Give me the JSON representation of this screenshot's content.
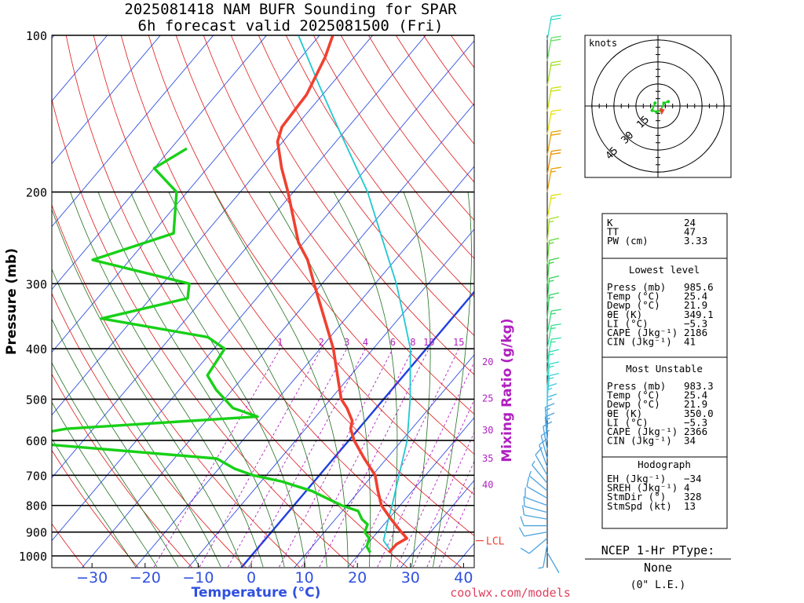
{
  "header": {
    "title_line1": "2025081418 NAM BUFR Sounding for SPAR",
    "title_line2": "6h forecast valid 2025081500 (Fri)"
  },
  "footer": {
    "site": "coolwx.com/models"
  },
  "chart_data": {
    "type": "skew-t",
    "xlabel": "Temperature (°C)",
    "ylabel": "Pressure (mb)",
    "mixing_ratio_label": "Mixing Ratio (g/kg)",
    "x_ticks": [
      "−30",
      "−20",
      "−10",
      "0",
      "10",
      "20",
      "30",
      "40"
    ],
    "x_tick_values": [
      -30,
      -20,
      -10,
      0,
      10,
      20,
      30,
      40
    ],
    "y_ticks": [
      "100",
      "200",
      "300",
      "400",
      "500",
      "600",
      "700",
      "800",
      "900",
      "1000"
    ],
    "y_tick_values": [
      100,
      200,
      300,
      400,
      500,
      600,
      700,
      800,
      900,
      1000
    ],
    "pressure_range": [
      100,
      1050
    ],
    "mixing_ratio_labels": [
      "1",
      "2",
      "3",
      "4",
      "6",
      "8",
      "10",
      "15",
      "20",
      "25",
      "30",
      "35",
      "40"
    ],
    "mixing_ratio_values": [
      1,
      2,
      3,
      4,
      6,
      8,
      10,
      15,
      20,
      25,
      30,
      35,
      40
    ],
    "lcl_label": "LCL",
    "lcl_pressure": 935,
    "temperature": [
      {
        "p": 985.6,
        "t": 25.4
      },
      {
        "p": 950,
        "t": 25.5
      },
      {
        "p": 925,
        "t": 26.5
      },
      {
        "p": 900,
        "t": 24.5
      },
      {
        "p": 850,
        "t": 20.5
      },
      {
        "p": 800,
        "t": 16.5
      },
      {
        "p": 750,
        "t": 13.5
      },
      {
        "p": 700,
        "t": 10.5
      },
      {
        "p": 650,
        "t": 5.8
      },
      {
        "p": 600,
        "t": 1.0
      },
      {
        "p": 570,
        "t": -1.5
      },
      {
        "p": 550,
        "t": -2.5
      },
      {
        "p": 520,
        "t": -5.5
      },
      {
        "p": 500,
        "t": -8.0
      },
      {
        "p": 450,
        "t": -12.5
      },
      {
        "p": 400,
        "t": -17.5
      },
      {
        "p": 350,
        "t": -24.0
      },
      {
        "p": 300,
        "t": -31.5
      },
      {
        "p": 270,
        "t": -36.5
      },
      {
        "p": 250,
        "t": -41.0
      },
      {
        "p": 200,
        "t": -51.0
      },
      {
        "p": 180,
        "t": -56.0
      },
      {
        "p": 160,
        "t": -61.0
      },
      {
        "p": 150,
        "t": -62.5
      },
      {
        "p": 130,
        "t": -63.0
      },
      {
        "p": 110,
        "t": -65.5
      },
      {
        "p": 100,
        "t": -67.5
      }
    ],
    "dewpoint": [
      {
        "p": 985.6,
        "t": 21.9
      },
      {
        "p": 960,
        "t": 20.3
      },
      {
        "p": 925,
        "t": 19.4
      },
      {
        "p": 900,
        "t": 17.6
      },
      {
        "p": 870,
        "t": 16.9
      },
      {
        "p": 850,
        "t": 15.0
      },
      {
        "p": 820,
        "t": 13.0
      },
      {
        "p": 800,
        "t": 9.0
      },
      {
        "p": 750,
        "t": 1.0
      },
      {
        "p": 720,
        "t": -6.0
      },
      {
        "p": 700,
        "t": -12.5
      },
      {
        "p": 680,
        "t": -17.0
      },
      {
        "p": 650,
        "t": -22.0
      },
      {
        "p": 600,
        "t": -66.0
      },
      {
        "p": 570,
        "t": -55.0
      },
      {
        "p": 540,
        "t": -21.0
      },
      {
        "p": 520,
        "t": -27.0
      },
      {
        "p": 480,
        "t": -33.0
      },
      {
        "p": 450,
        "t": -37.0
      },
      {
        "p": 400,
        "t": -38.0
      },
      {
        "p": 380,
        "t": -43.0
      },
      {
        "p": 350,
        "t": -66.0
      },
      {
        "p": 320,
        "t": -53.0
      },
      {
        "p": 300,
        "t": -55.0
      },
      {
        "p": 270,
        "t": -77.0
      },
      {
        "p": 240,
        "t": -66.0
      },
      {
        "p": 200,
        "t": -72.0
      },
      {
        "p": 180,
        "t": -80.0
      },
      {
        "p": 165,
        "t": -77.0
      }
    ],
    "parcel": [
      {
        "p": 985.6,
        "t": 26.0
      },
      {
        "p": 935,
        "t": 22.5
      },
      {
        "p": 900,
        "t": 21.5
      },
      {
        "p": 850,
        "t": 20.0
      },
      {
        "p": 800,
        "t": 18.5
      },
      {
        "p": 700,
        "t": 15.0
      },
      {
        "p": 600,
        "t": 11.0
      },
      {
        "p": 500,
        "t": 5.0
      },
      {
        "p": 400,
        "t": -3.0
      },
      {
        "p": 350,
        "t": -9.0
      },
      {
        "p": 300,
        "t": -16.0
      },
      {
        "p": 250,
        "t": -25.0
      },
      {
        "p": 200,
        "t": -36.0
      },
      {
        "p": 150,
        "t": -52.0
      },
      {
        "p": 125,
        "t": -62.0
      },
      {
        "p": 100,
        "t": -74.0
      }
    ],
    "wind_barbs": [
      {
        "p": 985,
        "dir": 150,
        "kt": 4,
        "color": "#4aa3e0"
      },
      {
        "p": 950,
        "dir": 190,
        "kt": 8,
        "color": "#4aa3e0"
      },
      {
        "p": 925,
        "dir": 230,
        "kt": 10,
        "color": "#4aa3e0"
      },
      {
        "p": 900,
        "dir": 260,
        "kt": 10,
        "color": "#4aa3e0"
      },
      {
        "p": 875,
        "dir": 270,
        "kt": 10,
        "color": "#4aa3e0"
      },
      {
        "p": 850,
        "dir": 280,
        "kt": 10,
        "color": "#4aa3e0"
      },
      {
        "p": 825,
        "dir": 285,
        "kt": 10,
        "color": "#4aa3e0"
      },
      {
        "p": 800,
        "dir": 290,
        "kt": 10,
        "color": "#4aa3e0"
      },
      {
        "p": 775,
        "dir": 300,
        "kt": 10,
        "color": "#4aa3e0"
      },
      {
        "p": 750,
        "dir": 310,
        "kt": 8,
        "color": "#4aa3e0"
      },
      {
        "p": 725,
        "dir": 320,
        "kt": 8,
        "color": "#4aa3e0"
      },
      {
        "p": 700,
        "dir": 330,
        "kt": 10,
        "color": "#4aa3e0"
      },
      {
        "p": 675,
        "dir": 340,
        "kt": 10,
        "color": "#4aa3e0"
      },
      {
        "p": 650,
        "dir": 345,
        "kt": 10,
        "color": "#4aa3e0"
      },
      {
        "p": 625,
        "dir": 350,
        "kt": 10,
        "color": "#4aa3e0"
      },
      {
        "p": 600,
        "dir": 355,
        "kt": 15,
        "color": "#4aa3e0"
      },
      {
        "p": 575,
        "dir": 355,
        "kt": 15,
        "color": "#4aa3e0"
      },
      {
        "p": 550,
        "dir": 0,
        "kt": 15,
        "color": "#40b8e8"
      },
      {
        "p": 525,
        "dir": 0,
        "kt": 15,
        "color": "#40c8e8"
      },
      {
        "p": 500,
        "dir": 5,
        "kt": 15,
        "color": "#40d0d8"
      },
      {
        "p": 475,
        "dir": 5,
        "kt": 15,
        "color": "#30d8c8"
      },
      {
        "p": 450,
        "dir": 5,
        "kt": 15,
        "color": "#30e0b8"
      },
      {
        "p": 425,
        "dir": 10,
        "kt": 15,
        "color": "#30e0a0"
      },
      {
        "p": 400,
        "dir": 10,
        "kt": 15,
        "color": "#30e090"
      },
      {
        "p": 375,
        "dir": 10,
        "kt": 15,
        "color": "#30d870"
      },
      {
        "p": 350,
        "dir": 5,
        "kt": 15,
        "color": "#30d060"
      },
      {
        "p": 325,
        "dir": 5,
        "kt": 15,
        "color": "#30d050"
      },
      {
        "p": 300,
        "dir": 5,
        "kt": 15,
        "color": "#40d040"
      },
      {
        "p": 275,
        "dir": 5,
        "kt": 15,
        "color": "#60d830"
      },
      {
        "p": 250,
        "dir": 5,
        "kt": 15,
        "color": "#a0e020"
      },
      {
        "p": 225,
        "dir": 10,
        "kt": 15,
        "color": "#e0e000"
      },
      {
        "p": 200,
        "dir": 10,
        "kt": 15,
        "color": "#e8a000"
      },
      {
        "p": 185,
        "dir": 10,
        "kt": 20,
        "color": "#e89000"
      },
      {
        "p": 170,
        "dir": 10,
        "kt": 20,
        "color": "#e8a000"
      },
      {
        "p": 155,
        "dir": 10,
        "kt": 15,
        "color": "#e8e000"
      },
      {
        "p": 140,
        "dir": 10,
        "kt": 20,
        "color": "#c8e000"
      },
      {
        "p": 125,
        "dir": 10,
        "kt": 20,
        "color": "#a0e020"
      },
      {
        "p": 112,
        "dir": 10,
        "kt": 20,
        "color": "#60e060"
      },
      {
        "p": 102,
        "dir": 10,
        "kt": 20,
        "color": "#30d8c8"
      }
    ]
  },
  "hodograph": {
    "units_label": "knots",
    "ring_labels": [
      "15",
      "30",
      "45"
    ],
    "ring_values": [
      15,
      30,
      45
    ],
    "path": [
      {
        "u": -2,
        "v": 2
      },
      {
        "u": -4,
        "v": -3
      },
      {
        "u": -1,
        "v": -4
      },
      {
        "u": 2,
        "v": -3
      },
      {
        "u": 4,
        "v": 2
      },
      {
        "u": 7,
        "v": 3
      }
    ],
    "storm_motion": {
      "u": 3,
      "v": -4
    }
  },
  "indices": {
    "top": [
      {
        "label": "K",
        "value": "24"
      },
      {
        "label": "TT",
        "value": "47"
      },
      {
        "label": "PW (cm)",
        "value": "3.33"
      }
    ],
    "lowest_title": "Lowest level",
    "lowest": [
      {
        "label": "Press (mb)",
        "value": "985.6"
      },
      {
        "label": "Temp (°C)",
        "value": "25.4"
      },
      {
        "label": "Dewp (°C)",
        "value": "21.9"
      },
      {
        "label": "θE (K)",
        "value": "349.1"
      },
      {
        "label": "LI (°C)",
        "value": "−5.3"
      },
      {
        "label": "CAPE (Jkg⁻¹)",
        "value": "2186"
      },
      {
        "label": "CIN (Jkg⁻¹)",
        "value": "41"
      }
    ],
    "unstable_title": "Most Unstable",
    "unstable": [
      {
        "label": "Press (mb)",
        "value": "983.3"
      },
      {
        "label": "Temp (°C)",
        "value": "25.4"
      },
      {
        "label": "Dewp (°C)",
        "value": "21.9"
      },
      {
        "label": "θE (K)",
        "value": "350.0"
      },
      {
        "label": "LI (°C)",
        "value": "−5.3"
      },
      {
        "label": "CAPE (Jkg⁻¹)",
        "value": "2366"
      },
      {
        "label": "CIN (Jkg⁻¹)",
        "value": "34"
      }
    ],
    "hodo_title": "Hodograph",
    "hodo": [
      {
        "label": "EH (Jkg⁻¹)",
        "value": "−34"
      },
      {
        "label": "SREH (Jkg⁻¹)",
        "value": "4"
      },
      {
        "label": "StmDir (°)",
        "value": "328"
      },
      {
        "label": "StmSpd (kt)",
        "value": "13"
      }
    ]
  },
  "ptype": {
    "title": "NCEP 1-Hr PType:",
    "value": "None",
    "note": "(0\" L.E.)"
  },
  "colors": {
    "temperature": "#f04030",
    "dewpoint": "#18d018",
    "parcel": "#20c8d0",
    "freezing": "#2040e0",
    "isotherm": "#3050e0",
    "dry_adiabat": "#e01818",
    "moist_adiabat": "#207020",
    "mixing_ratio": "#b020c0",
    "lcl": "#f04030"
  }
}
